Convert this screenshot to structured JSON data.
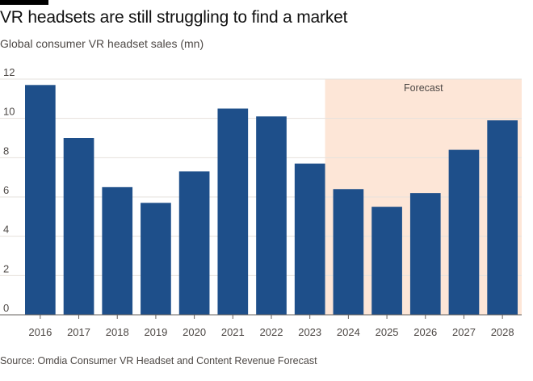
{
  "chart_data": {
    "type": "bar",
    "title": "VR headsets are still struggling to find a market",
    "subtitle": "Global consumer VR headset sales (mn)",
    "categories": [
      "2016",
      "2017",
      "2018",
      "2019",
      "2020",
      "2021",
      "2022",
      "2023",
      "2024",
      "2025",
      "2026",
      "2027",
      "2028"
    ],
    "values": [
      11.7,
      9.0,
      6.5,
      5.7,
      7.3,
      10.5,
      10.1,
      7.7,
      6.4,
      5.5,
      6.2,
      8.4,
      9.9
    ],
    "ylim": [
      0,
      12
    ],
    "yticks": [
      0,
      2,
      4,
      6,
      8,
      10,
      12
    ],
    "xlabel": "",
    "ylabel": "",
    "grid": true,
    "forecast": {
      "label": "Forecast",
      "start_category": "2024",
      "end_category": "2028"
    },
    "source": "Source: Omdia Consumer VR Headset and Content Revenue Forecast"
  },
  "colors": {
    "bar": "#1e4f8a",
    "forecast_band": "#fde6d7",
    "grid": "#e6e1dc",
    "axis": "#66605c"
  }
}
